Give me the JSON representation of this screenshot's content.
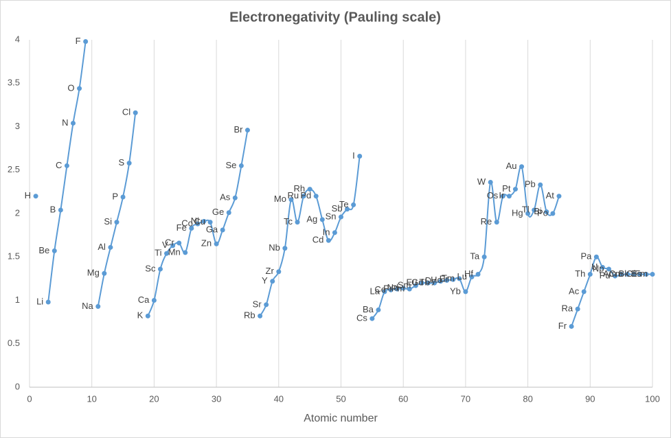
{
  "chart_data": {
    "type": "line",
    "title": "Electronegativity (Pauling scale)",
    "x_label": "Atomic number",
    "x": [
      1,
      2,
      3,
      4,
      5,
      6,
      7,
      8,
      9,
      10,
      11,
      12,
      13,
      14,
      15,
      16,
      17,
      18,
      19,
      20,
      21,
      22,
      23,
      24,
      25,
      26,
      27,
      28,
      29,
      30,
      31,
      32,
      33,
      34,
      35,
      36,
      37,
      38,
      39,
      40,
      41,
      42,
      43,
      44,
      45,
      46,
      47,
      48,
      49,
      50,
      51,
      52,
      53,
      54,
      55,
      56,
      57,
      58,
      59,
      60,
      61,
      62,
      63,
      64,
      65,
      66,
      67,
      68,
      69,
      70,
      71,
      72,
      73,
      74,
      75,
      76,
      77,
      78,
      79,
      80,
      81,
      82,
      83,
      84,
      85,
      86,
      87,
      88,
      89,
      90,
      91,
      92,
      93,
      94,
      95,
      96,
      97,
      98,
      99,
      100
    ],
    "values": [
      2.2,
      null,
      0.98,
      1.57,
      2.04,
      2.55,
      3.04,
      3.44,
      3.98,
      null,
      0.93,
      1.31,
      1.61,
      1.9,
      2.19,
      2.58,
      3.16,
      null,
      0.82,
      1,
      1.36,
      1.54,
      1.63,
      1.66,
      1.55,
      1.83,
      1.88,
      1.91,
      1.9,
      1.65,
      1.81,
      2.01,
      2.18,
      2.55,
      2.96,
      null,
      0.82,
      0.95,
      1.22,
      1.33,
      1.6,
      2.16,
      1.9,
      2.2,
      2.28,
      2.2,
      1.93,
      1.69,
      1.78,
      1.96,
      2.05,
      2.1,
      2.66,
      null,
      0.79,
      0.89,
      1.1,
      1.12,
      1.13,
      1.14,
      1.13,
      1.17,
      1.2,
      1.2,
      1.2,
      1.22,
      1.23,
      1.24,
      1.25,
      1.1,
      1.27,
      1.3,
      1.5,
      2.36,
      1.9,
      2.2,
      2.2,
      2.28,
      2.54,
      2,
      2.04,
      2.33,
      2.02,
      2,
      2.2,
      null,
      0.7,
      0.9,
      1.1,
      1.3,
      1.5,
      1.38,
      1.36,
      1.28,
      1.3,
      1.3,
      1.3,
      1.3,
      1.3,
      1.3
    ],
    "point_labels": [
      "H",
      null,
      "Li",
      "Be",
      "B",
      "C",
      "N",
      "O",
      "F",
      null,
      "Na",
      "Mg",
      "Al",
      "Si",
      "P",
      "S",
      "Cl",
      null,
      "K",
      "Ca",
      "Sc",
      "Ti",
      "V",
      "Cr",
      "Mn",
      "Fe",
      "Co",
      "Ni",
      "Cu",
      "Zn",
      "Ga",
      "Ge",
      "As",
      "Se",
      "Br",
      null,
      "Rb",
      "Sr",
      "Y",
      "Zr",
      "Nb",
      "Mo",
      "Tc",
      "Ru",
      "Rh",
      "Pd",
      "Ag",
      "Cd",
      "In",
      "Sn",
      "Sb",
      "Te",
      "I",
      null,
      "Cs",
      "Ba",
      "La",
      "Ce",
      "Pr",
      "Nd",
      "Pm",
      "Sm",
      "Eu",
      "Gd",
      "Tb",
      "Dy",
      "Ho",
      "Er",
      "Tm",
      "Yb",
      "Lu",
      "Hf",
      "Ta",
      "W",
      "Re",
      "Os",
      "Ir",
      "Pt",
      "Au",
      "Hg",
      "Tl",
      "Pb",
      "Bi",
      "Po",
      "At",
      null,
      "Fr",
      "Ra",
      "Ac",
      "Th",
      "Pa",
      "U",
      "Np",
      "Pu",
      "Am",
      "Cm",
      "Bk",
      "Cf",
      "Es",
      "Fm"
    ],
    "color": "#5b9bd5",
    "smooth": true,
    "grid": "x",
    "xlim": [
      0,
      100
    ],
    "xticks": [
      0,
      10,
      20,
      30,
      40,
      50,
      60,
      70,
      80,
      90,
      100
    ],
    "ylim": [
      0,
      4
    ],
    "yticks": [
      0,
      0.5,
      1,
      1.5,
      2,
      2.5,
      3,
      3.5,
      4
    ]
  }
}
